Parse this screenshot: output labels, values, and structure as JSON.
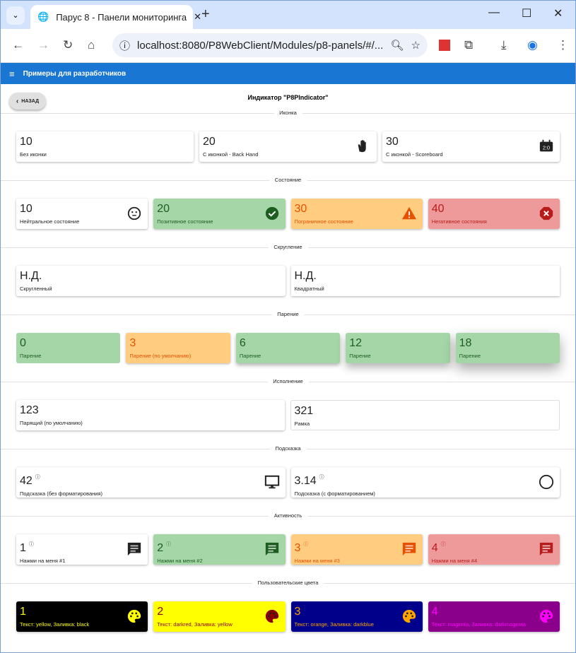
{
  "browser": {
    "tab_title": "Парус 8 - Панели мониторинга",
    "url": "localhost:8080/P8WebClient/Modules/p8-panels/#/..."
  },
  "app": {
    "title": "Примеры для разработчиков",
    "back": "НАЗАД",
    "page_title": "Индикатор \"P8PIndicator\""
  },
  "colors": {
    "appbar": "#1976d2",
    "positive": "#a5d6a7",
    "warning": "#ffcc80",
    "negative": "#ef9a9a"
  },
  "sections": [
    {
      "title": "Иконка",
      "cards": [
        {
          "value": "10",
          "label": "Без иконки"
        },
        {
          "value": "20",
          "label": "С иконкой - Back Hand",
          "icon": "back-hand-icon"
        },
        {
          "value": "30",
          "label": "С иконкой - Scoreboard",
          "icon": "scoreboard-icon"
        }
      ]
    },
    {
      "title": "Состояние",
      "cards": [
        {
          "value": "10",
          "label": "Нейтральное состояние",
          "icon": "neutral-face-icon"
        },
        {
          "value": "20",
          "label": "Позитивное состояние",
          "icon": "check-circle-icon"
        },
        {
          "value": "30",
          "label": "Пограничное состояние",
          "icon": "warning-icon"
        },
        {
          "value": "40",
          "label": "Негативное состояния",
          "icon": "error-icon"
        }
      ]
    },
    {
      "title": "Скругление",
      "cards": [
        {
          "value": "Н.Д.",
          "label": "Скругленный"
        },
        {
          "value": "Н.Д.",
          "label": "Квадратный"
        }
      ]
    },
    {
      "title": "Парение",
      "cards": [
        {
          "value": "0",
          "label": "Парение"
        },
        {
          "value": "3",
          "label": "Парение (по умолчанию)"
        },
        {
          "value": "6",
          "label": "Парение"
        },
        {
          "value": "12",
          "label": "Парение"
        },
        {
          "value": "18",
          "label": "Парение"
        }
      ]
    },
    {
      "title": "Исполнение",
      "cards": [
        {
          "value": "123",
          "label": "Парящий (по умолчанию)"
        },
        {
          "value": "321",
          "label": "Рамка"
        }
      ]
    },
    {
      "title": "Подсказка",
      "cards": [
        {
          "value": "42",
          "label": "Подсказка (без форматирования)",
          "icon": "monitor-icon"
        },
        {
          "value": "3.14",
          "label": "Подсказка (с форматированием)",
          "icon": "circle-icon"
        }
      ]
    },
    {
      "title": "Активность",
      "cards": [
        {
          "value": "1",
          "label": "Нажми на меня #1",
          "icon": "comment-icon"
        },
        {
          "value": "2",
          "label": "Нажми на меня #2",
          "icon": "comment-icon"
        },
        {
          "value": "3",
          "label": "Нажми на меня #3",
          "icon": "comment-icon"
        },
        {
          "value": "4",
          "label": "Нажми на меня #4",
          "icon": "comment-icon"
        }
      ]
    },
    {
      "title": "Пользовательские цвета",
      "cards": [
        {
          "value": "1",
          "label": "Текст: yellow, Заливка: black",
          "text_color": "#ffff00",
          "fill": "#000000",
          "icon": "palette-icon"
        },
        {
          "value": "2",
          "label": "Текст: darkred, Заливка: yellow",
          "text_color": "#8b0000",
          "fill": "#ffff00",
          "icon": "palette-icon"
        },
        {
          "value": "3",
          "label": "Текст: orange, Заливка: darkblue",
          "text_color": "#ffa500",
          "fill": "#00008b",
          "icon": "palette-icon"
        },
        {
          "value": "4",
          "label": "Текст: magenta, Заливка: darkmagenta",
          "text_color": "#ff00ff",
          "fill": "#8b008b",
          "icon": "palette-icon"
        }
      ]
    }
  ]
}
